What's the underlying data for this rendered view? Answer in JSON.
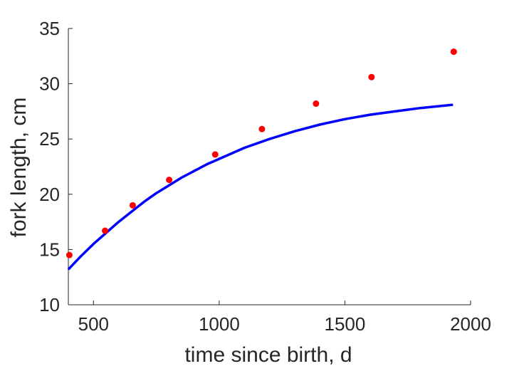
{
  "chart_data": {
    "type": "scatter",
    "title": "",
    "xlabel": "time since birth, d",
    "ylabel": "fork length, cm",
    "xlim": [
      400,
      2000
    ],
    "ylim": [
      10,
      35
    ],
    "xticks": [
      500,
      1000,
      1500,
      2000
    ],
    "yticks": [
      10,
      15,
      20,
      25,
      30,
      35
    ],
    "grid": false,
    "legend": "none",
    "colors": {
      "points": "#ff0000",
      "curve": "#0000ff",
      "axis": "#262626"
    },
    "series": [
      {
        "kind": "points",
        "x": [
          404,
          546,
          656,
          801,
          984,
          1170,
          1385,
          1606,
          1933
        ],
        "y": [
          14.5,
          16.7,
          19.0,
          21.3,
          23.6,
          25.9,
          28.2,
          30.6,
          32.9
        ]
      },
      {
        "kind": "line",
        "x": [
          400,
          450,
          500,
          550,
          600,
          650,
          700,
          750,
          800,
          850,
          900,
          950,
          1000,
          1100,
          1200,
          1300,
          1400,
          1500,
          1600,
          1700,
          1800,
          1930
        ],
        "y": [
          13.2,
          14.4,
          15.5,
          16.5,
          17.5,
          18.4,
          19.3,
          20.1,
          20.8,
          21.5,
          22.1,
          22.7,
          23.2,
          24.2,
          25.0,
          25.7,
          26.3,
          26.8,
          27.2,
          27.5,
          27.8,
          28.1
        ]
      }
    ]
  }
}
